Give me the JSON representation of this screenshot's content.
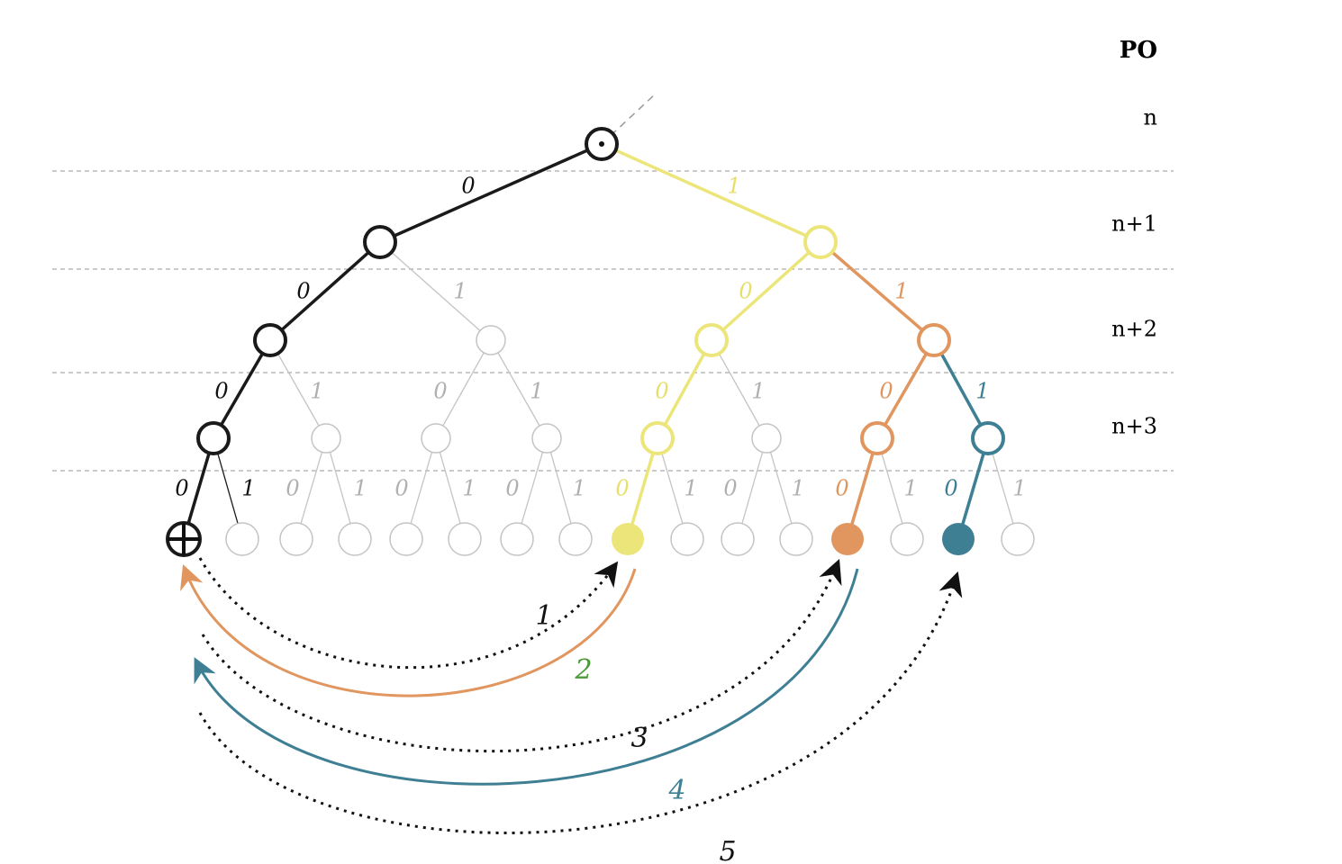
{
  "header": {
    "title": "PO"
  },
  "levels": [
    "n",
    "n+1",
    "n+2",
    "n+3"
  ],
  "edge_labels": [
    "0",
    "1",
    "0",
    "1",
    "0",
    "1",
    "0",
    "1",
    "0",
    "1",
    "0",
    "1",
    "0",
    "1",
    "0",
    "1",
    "0",
    "1",
    "0",
    "1",
    "0",
    "1",
    "0",
    "1",
    "0",
    "1",
    "0",
    "1",
    "0",
    "1"
  ],
  "arrow_labels": [
    "1",
    "2",
    "3",
    "4",
    "5"
  ]
}
